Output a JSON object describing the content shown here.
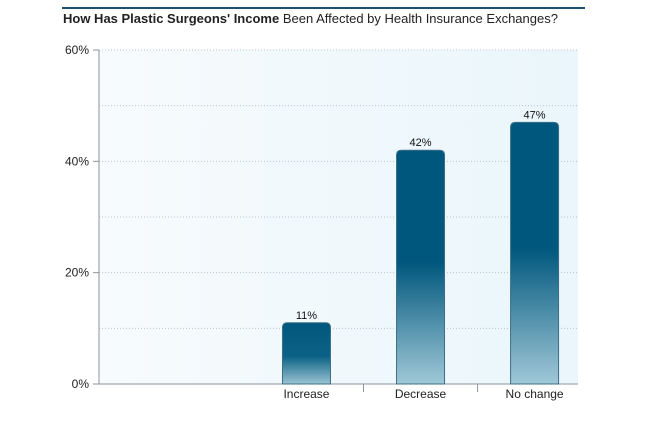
{
  "title": {
    "bold": "How Has Plastic Surgeons' Income",
    "rest": " Been Affected by Health Insurance Exchanges?"
  },
  "colors": {
    "bar_top": "#00577d",
    "bar_bottom": "#9ac3d3",
    "plot_bg": "#eef7fb",
    "grid": "#b8c4cc",
    "axis": "#8a959c"
  },
  "chart_data": {
    "type": "bar",
    "title": "How Has Plastic Surgeons' Income Been Affected by Health Insurance Exchanges?",
    "categories": [
      "Increase",
      "Decrease",
      "No change"
    ],
    "values": [
      11,
      42,
      47
    ],
    "data_labels": [
      "11%",
      "42%",
      "47%"
    ],
    "xlabel": "",
    "ylabel": "",
    "ylim": [
      0,
      60
    ],
    "yticks": [
      0,
      20,
      40,
      60
    ],
    "ytick_labels": [
      "0%",
      "20%",
      "40%",
      "60%"
    ],
    "grid": true,
    "legend": "none"
  }
}
